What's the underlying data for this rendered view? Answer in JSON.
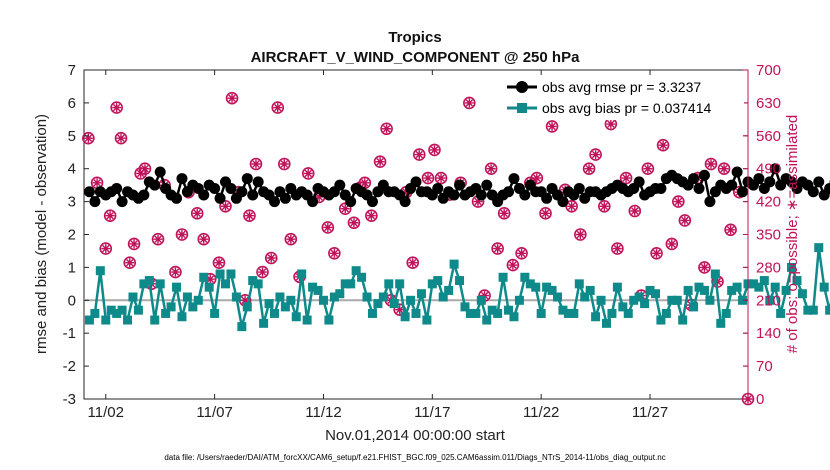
{
  "chart_data": {
    "type": "line",
    "title": "Tropics",
    "subtitle": "AIRCRAFT_V_WIND_COMPONENT @ 250 hPa",
    "xlabel": "Nov.01,2014 00:00:00 start",
    "ylabel": "rmse and bias (model - observation)",
    "y2label": "# of obs: o=possible; ∗=assimilated",
    "footnote": "data file: /Users/raeder/DAI/ATM_forcXX/CAM6_setup/f.e21.FHIST_BGC.f09_025.CAM6assim.011/Diags_NTrS_2014-11/obs_diag_output.nc",
    "xlim": [
      0,
      30.5
    ],
    "ylim": [
      -3,
      7
    ],
    "y2lim": [
      0,
      700
    ],
    "x_ticks": [
      1,
      6,
      11,
      16,
      21,
      26
    ],
    "x_tick_labels": [
      "11/02",
      "11/07",
      "11/12",
      "11/17",
      "11/22",
      "11/27"
    ],
    "y_ticks": [
      "-3",
      "-2",
      "-1",
      "0",
      "1",
      "2",
      "3",
      "4",
      "5",
      "6",
      "7"
    ],
    "y2_ticks": [
      "0",
      "70",
      "140",
      "210",
      "280",
      "350",
      "420",
      "490",
      "560",
      "630",
      "700"
    ],
    "legend_position": "top-right",
    "start_day": 0.25,
    "step_days": 0.25,
    "series": [
      {
        "name": "obs avg rmse pr = 3.3237",
        "color": "#000000",
        "marker": "circle",
        "values": [
          3.3,
          3.0,
          3.3,
          3.2,
          3.3,
          3.4,
          3.0,
          3.3,
          3.2,
          3.1,
          3.2,
          3.6,
          3.5,
          3.9,
          3.4,
          3.2,
          3.1,
          3.7,
          3.3,
          3.5,
          3.4,
          3.2,
          3.5,
          3.4,
          3.1,
          3.6,
          3.4,
          3.1,
          3.3,
          3.7,
          3.2,
          3.6,
          3.3,
          3.2,
          3.0,
          3.3,
          3.1,
          3.4,
          3.2,
          3.3,
          3.2,
          3.0,
          3.4,
          3.3,
          3.2,
          3.3,
          3.5,
          3.2,
          3.0,
          3.4,
          3.3,
          3.2,
          3.0,
          3.3,
          3.5,
          3.3,
          3.3,
          3.2,
          3.0,
          3.4,
          3.6,
          3.3,
          3.3,
          3.2,
          3.4,
          3.1,
          3.3,
          3.2,
          3.5,
          3.2,
          3.3,
          3.4,
          3.2,
          3.5,
          3.2,
          3.0,
          3.2,
          3.3,
          3.7,
          3.4,
          3.2,
          3.5,
          3.3,
          3.3,
          3.1,
          3.4,
          3.2,
          3.0,
          3.3,
          3.2,
          3.4,
          3.1,
          3.3,
          3.3,
          3.2,
          3.3,
          3.4,
          3.5,
          3.4,
          3.3,
          3.4,
          3.6,
          3.2,
          3.3,
          3.4,
          3.4,
          3.7,
          3.8,
          3.7,
          3.6,
          3.5,
          3.7,
          3.4,
          3.8,
          3.0,
          3.3,
          3.5,
          3.4,
          3.5,
          3.9,
          3.3,
          3.6,
          3.5,
          3.7,
          3.4,
          3.6,
          4.0,
          3.5,
          3.7,
          3.6,
          3.4,
          3.6,
          3.5,
          3.3,
          3.6,
          3.2,
          3.4,
          3.6,
          3.3,
          3.7,
          3.4,
          3.5,
          3.2,
          3.6,
          3.3,
          3.5,
          3.6,
          3.3,
          3.4,
          3.2,
          3.4,
          3.5,
          3.7,
          3.4,
          3.2,
          3.6,
          3.3,
          3.4,
          3.1,
          3.3,
          3.5,
          3.6,
          3.1,
          3.4,
          3.3,
          3.8,
          3.1,
          3.3,
          3.0,
          3.4,
          3.2,
          3.3,
          3.3,
          2.6,
          3.4,
          3.2,
          3.3,
          3.3,
          3.2,
          3.4,
          3.2,
          3.3,
          3.3,
          3.2,
          3.4,
          3.4,
          3.2,
          3.3,
          3.2,
          3.3,
          3.2,
          3.3,
          3.7,
          3.1,
          3.6,
          3.4,
          3.2,
          3.9,
          3.9,
          3.3,
          3.2,
          3.3
        ]
      },
      {
        "name": "obs avg bias pr = 0.037414",
        "color": "#0f8a8a",
        "marker": "square",
        "values": [
          -0.6,
          -0.4,
          0.9,
          -0.6,
          -0.3,
          -0.4,
          -0.3,
          -0.6,
          0.1,
          -0.3,
          0.5,
          0.6,
          -0.6,
          0.5,
          -0.4,
          -0.2,
          0.4,
          -0.5,
          0.1,
          -0.2,
          0.0,
          0.7,
          0.4,
          -0.4,
          0.8,
          0.5,
          0.8,
          0.1,
          -0.8,
          -0.2,
          0.6,
          0.5,
          -0.7,
          -0.1,
          -0.4,
          0.1,
          -0.2,
          0.0,
          -0.5,
          0.8,
          -0.6,
          0.4,
          0.3,
          0.0,
          -0.6,
          0.1,
          0.2,
          0.5,
          0.5,
          0.9,
          0.7,
          0.1,
          -0.4,
          -0.1,
          0.1,
          0.5,
          -0.1,
          0.5,
          -0.5,
          0.0,
          -0.4,
          0.2,
          -0.6,
          0.5,
          0.6,
          0.1,
          0.3,
          1.1,
          0.6,
          -0.2,
          -0.4,
          -0.4,
          0.0,
          -0.6,
          -0.3,
          -0.4,
          0.7,
          -0.3,
          -0.5,
          0.0,
          0.7,
          0.5,
          0.4,
          -0.4,
          0.4,
          0.3,
          0.1,
          -0.3,
          -0.4,
          -0.4,
          0.5,
          0.1,
          0.3,
          -0.5,
          0.0,
          -0.7,
          -0.4,
          0.4,
          -0.2,
          -0.4,
          0.0,
          0.1,
          -0.1,
          0.3,
          0.2,
          -0.6,
          -0.4,
          0.0,
          0.0,
          -0.6,
          0.3,
          -0.2,
          0.4,
          0.3,
          0.0,
          0.8,
          -0.7,
          -0.4,
          0.3,
          0.4,
          0.0,
          0.5,
          0.5,
          0.4,
          0.6,
          0.0,
          0.4,
          -0.4,
          0.3,
          1.0,
          0.6,
          0.2,
          -0.3,
          -0.3,
          1.6,
          0.4,
          -0.3,
          0.5,
          0.6,
          0.0,
          -0.5,
          0.5,
          0.1,
          -0.2,
          0.1,
          -0.3,
          0.2,
          0.5,
          0.7,
          -0.1,
          -0.7,
          -0.4,
          0.3,
          -1.8,
          -0.6,
          0.1,
          0.1,
          -0.4,
          -0.5,
          0.3,
          -0.3,
          0.0,
          -0.5,
          0.2,
          0.6,
          0.0,
          0.6,
          -0.3,
          0.0,
          -0.1,
          0.1,
          0.5,
          0.2,
          -0.3,
          0.2,
          0.4,
          0.3,
          0.0,
          -0.3,
          0.2,
          0.1,
          -0.3,
          0.4,
          -0.1,
          0.0,
          0.8,
          0.4,
          0.0,
          0.2,
          0.4,
          0.1,
          -0.4,
          0.3,
          0.6,
          0.1,
          1.0,
          0.4,
          0.5,
          -0.1,
          0.0
        ]
      }
    ],
    "obs_possible": [
      {
        "x": 0.2,
        "v": 555
      },
      {
        "x": 0.6,
        "v": 460
      },
      {
        "x": 1.0,
        "v": 320
      },
      {
        "x": 1.2,
        "v": 390
      },
      {
        "x": 1.5,
        "v": 620
      },
      {
        "x": 1.7,
        "v": 555
      },
      {
        "x": 2.1,
        "v": 290
      },
      {
        "x": 2.3,
        "v": 330
      },
      {
        "x": 2.6,
        "v": 480
      },
      {
        "x": 2.8,
        "v": 490
      },
      {
        "x": 3.1,
        "v": 245
      },
      {
        "x": 3.4,
        "v": 340
      },
      {
        "x": 3.7,
        "v": 455
      },
      {
        "x": 4.2,
        "v": 270
      },
      {
        "x": 4.5,
        "v": 350
      },
      {
        "x": 4.8,
        "v": 440
      },
      {
        "x": 5.2,
        "v": 395
      },
      {
        "x": 5.5,
        "v": 340
      },
      {
        "x": 5.8,
        "v": 255
      },
      {
        "x": 6.2,
        "v": 290
      },
      {
        "x": 6.5,
        "v": 410
      },
      {
        "x": 6.8,
        "v": 640
      },
      {
        "x": 7.1,
        "v": 440
      },
      {
        "x": 7.4,
        "v": 210
      },
      {
        "x": 7.6,
        "v": 390
      },
      {
        "x": 7.9,
        "v": 500
      },
      {
        "x": 8.2,
        "v": 270
      },
      {
        "x": 8.6,
        "v": 300
      },
      {
        "x": 8.9,
        "v": 620
      },
      {
        "x": 9.2,
        "v": 500
      },
      {
        "x": 9.5,
        "v": 340
      },
      {
        "x": 9.9,
        "v": 260
      },
      {
        "x": 10.3,
        "v": 480
      },
      {
        "x": 10.8,
        "v": 430
      },
      {
        "x": 11.2,
        "v": 365
      },
      {
        "x": 11.5,
        "v": 310
      },
      {
        "x": 12.0,
        "v": 405
      },
      {
        "x": 12.4,
        "v": 375
      },
      {
        "x": 12.7,
        "v": 450
      },
      {
        "x": 12.9,
        "v": 460
      },
      {
        "x": 13.2,
        "v": 390
      },
      {
        "x": 13.6,
        "v": 505
      },
      {
        "x": 13.9,
        "v": 575
      },
      {
        "x": 14.1,
        "v": 210
      },
      {
        "x": 14.5,
        "v": 190
      },
      {
        "x": 14.8,
        "v": 440
      },
      {
        "x": 15.1,
        "v": 290
      },
      {
        "x": 15.4,
        "v": 520
      },
      {
        "x": 15.8,
        "v": 470
      },
      {
        "x": 16.1,
        "v": 530
      },
      {
        "x": 16.4,
        "v": 470
      },
      {
        "x": 16.8,
        "v": 435
      },
      {
        "x": 17.3,
        "v": 460
      },
      {
        "x": 17.7,
        "v": 630
      },
      {
        "x": 18.1,
        "v": 420
      },
      {
        "x": 18.4,
        "v": 220
      },
      {
        "x": 18.7,
        "v": 490
      },
      {
        "x": 19.0,
        "v": 320
      },
      {
        "x": 19.3,
        "v": 395
      },
      {
        "x": 19.7,
        "v": 285
      },
      {
        "x": 20.1,
        "v": 310
      },
      {
        "x": 20.5,
        "v": 460
      },
      {
        "x": 20.8,
        "v": 470
      },
      {
        "x": 21.2,
        "v": 395
      },
      {
        "x": 21.5,
        "v": 580
      },
      {
        "x": 21.8,
        "v": 620
      },
      {
        "x": 22.1,
        "v": 445
      },
      {
        "x": 22.4,
        "v": 410
      },
      {
        "x": 22.8,
        "v": 350
      },
      {
        "x": 23.2,
        "v": 490
      },
      {
        "x": 23.5,
        "v": 520
      },
      {
        "x": 23.9,
        "v": 410
      },
      {
        "x": 24.2,
        "v": 585
      },
      {
        "x": 24.5,
        "v": 320
      },
      {
        "x": 24.9,
        "v": 470
      },
      {
        "x": 25.3,
        "v": 400
      },
      {
        "x": 25.6,
        "v": 220
      },
      {
        "x": 25.9,
        "v": 490
      },
      {
        "x": 26.3,
        "v": 310
      },
      {
        "x": 26.6,
        "v": 540
      },
      {
        "x": 27.0,
        "v": 330
      },
      {
        "x": 27.3,
        "v": 420
      },
      {
        "x": 27.6,
        "v": 380
      },
      {
        "x": 27.9,
        "v": 200
      },
      {
        "x": 28.2,
        "v": 470
      },
      {
        "x": 28.5,
        "v": 280
      },
      {
        "x": 28.8,
        "v": 500
      },
      {
        "x": 29.1,
        "v": 250
      },
      {
        "x": 29.4,
        "v": 490
      },
      {
        "x": 29.7,
        "v": 360
      },
      {
        "x": 30.1,
        "v": 440
      }
    ],
    "obs_assimilated_note": "asterisk markers overlap the possible markers (same values)",
    "outlier_at_origin": {
      "x": 30.5,
      "v": 0
    }
  }
}
